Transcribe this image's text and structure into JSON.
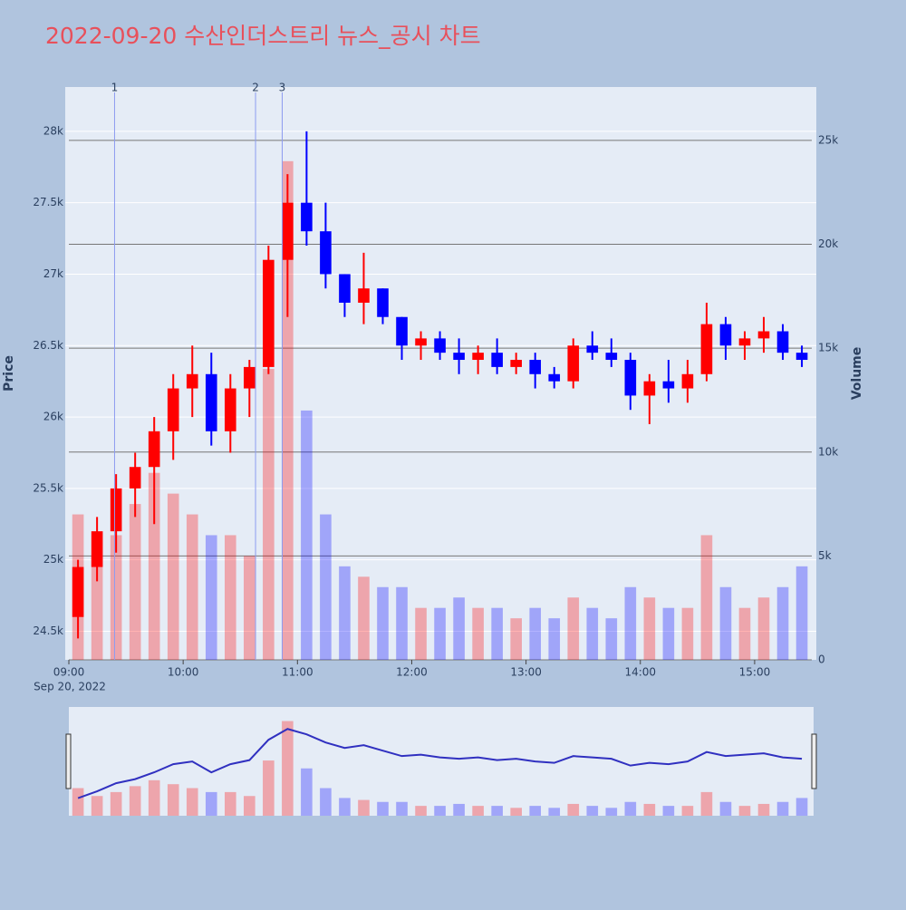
{
  "chart_data": {
    "type": "candlestick",
    "title": "2022-09-20 수산인더스트리 뉴스_공시 차트",
    "x_subtitle": "Sep 20, 2022",
    "y_title": "Price",
    "y2_title": "Volume",
    "increasing_color": "#ff0000",
    "decreasing_color": "#0000ff",
    "grid": true,
    "x": [
      "2022-09-20 09:00",
      "2022-09-20 09:10",
      "2022-09-20 09:20",
      "2022-09-20 09:30",
      "2022-09-20 09:40",
      "2022-09-20 09:50",
      "2022-09-20 10:00",
      "2022-09-20 10:10",
      "2022-09-20 10:20",
      "2022-09-20 10:30",
      "2022-09-20 10:40",
      "2022-09-20 10:50",
      "2022-09-20 11:00",
      "2022-09-20 11:10",
      "2022-09-20 11:20",
      "2022-09-20 11:30",
      "2022-09-20 11:40",
      "2022-09-20 11:50",
      "2022-09-20 12:00",
      "2022-09-20 12:10",
      "2022-09-20 12:20",
      "2022-09-20 12:30",
      "2022-09-20 12:40",
      "2022-09-20 12:50",
      "2022-09-20 13:00",
      "2022-09-20 13:10",
      "2022-09-20 13:20",
      "2022-09-20 13:30",
      "2022-09-20 13:40",
      "2022-09-20 13:50",
      "2022-09-20 14:00",
      "2022-09-20 14:10",
      "2022-09-20 14:20",
      "2022-09-20 14:30",
      "2022-09-20 14:40",
      "2022-09-20 14:50",
      "2022-09-20 15:00",
      "2022-09-20 15:10",
      "2022-09-20 15:20"
    ],
    "open": [
      24600,
      24950,
      25200,
      25500,
      25650,
      25900,
      26200,
      26300,
      25900,
      26200,
      26350,
      27100,
      27500,
      27300,
      27000,
      26800,
      26900,
      26700,
      26500,
      26550,
      26450,
      26400,
      26450,
      26350,
      26400,
      26300,
      26250,
      26500,
      26450,
      26400,
      26150,
      26250,
      26200,
      26300,
      26650,
      26500,
      26550,
      26600,
      26450
    ],
    "high": [
      25000,
      25300,
      25600,
      25750,
      26000,
      26300,
      26500,
      26450,
      26300,
      26400,
      27200,
      27700,
      28000,
      27500,
      27000,
      27150,
      26900,
      26700,
      26600,
      26600,
      26550,
      26500,
      26550,
      26450,
      26450,
      26350,
      26550,
      26600,
      26550,
      26450,
      26300,
      26400,
      26400,
      26800,
      26700,
      26600,
      26700,
      26650,
      26500
    ],
    "low": [
      24450,
      24850,
      25050,
      25300,
      25250,
      25700,
      26000,
      25800,
      25750,
      26000,
      26300,
      26700,
      27200,
      26900,
      26700,
      26650,
      26650,
      26400,
      26400,
      26400,
      26300,
      26300,
      26300,
      26300,
      26200,
      26200,
      26200,
      26400,
      26350,
      26050,
      25950,
      26100,
      26100,
      26250,
      26400,
      26400,
      26450,
      26400,
      26350
    ],
    "close": [
      24950,
      25200,
      25500,
      25650,
      25900,
      26200,
      26300,
      25900,
      26200,
      26350,
      27100,
      27500,
      27300,
      27000,
      26800,
      26900,
      26700,
      26500,
      26550,
      26450,
      26400,
      26450,
      26350,
      26400,
      26300,
      26250,
      26500,
      26450,
      26400,
      26150,
      26250,
      26200,
      26300,
      26650,
      26500,
      26550,
      26600,
      26450,
      26400
    ],
    "volume": [
      7000,
      5000,
      6000,
      7500,
      9000,
      8000,
      7000,
      6000,
      6000,
      5000,
      14000,
      24000,
      12000,
      7000,
      4500,
      4000,
      3500,
      3500,
      2500,
      2500,
      3000,
      2500,
      2500,
      2000,
      2500,
      2000,
      3000,
      2500,
      2000,
      3500,
      3000,
      2500,
      2500,
      6000,
      3500,
      2500,
      3000,
      3500,
      4500
    ],
    "xlim": [
      "2022-09-20 09:00",
      "2022-09-20 15:30"
    ],
    "xticks": [
      {
        "value": "2022-09-20 09:00",
        "label": "09:00"
      },
      {
        "value": "2022-09-20 10:00",
        "label": "10:00"
      },
      {
        "value": "2022-09-20 11:00",
        "label": "11:00"
      },
      {
        "value": "2022-09-20 12:00",
        "label": "12:00"
      },
      {
        "value": "2022-09-20 13:00",
        "label": "13:00"
      },
      {
        "value": "2022-09-20 14:00",
        "label": "14:00"
      },
      {
        "value": "2022-09-20 15:00",
        "label": "15:00"
      }
    ],
    "ylim": [
      24300,
      28310
    ],
    "yticks": [
      {
        "value": 24500,
        "label": "24.5k"
      },
      {
        "value": 25000,
        "label": "25k"
      },
      {
        "value": 25500,
        "label": "25.5k"
      },
      {
        "value": 26000,
        "label": "26k"
      },
      {
        "value": 26500,
        "label": "26.5k"
      },
      {
        "value": 27000,
        "label": "27k"
      },
      {
        "value": 27500,
        "label": "27.5k"
      },
      {
        "value": 28000,
        "label": "28k"
      }
    ],
    "y2lim": [
      0,
      27570
    ],
    "y2ticks": [
      0,
      {
        "value": 5000,
        "label": "5k"
      },
      {
        "value": 10000,
        "label": "10k"
      },
      {
        "value": 15000,
        "label": "15k"
      },
      {
        "value": 20000,
        "label": "20k"
      },
      {
        "value": 25000,
        "label": "25k"
      }
    ],
    "events": [
      {
        "x": "2022-09-20 09:24",
        "label": "1"
      },
      {
        "x": "2022-09-20 10:38",
        "label": "2"
      },
      {
        "x": "2022-09-20 10:52",
        "label": "3"
      }
    ]
  }
}
